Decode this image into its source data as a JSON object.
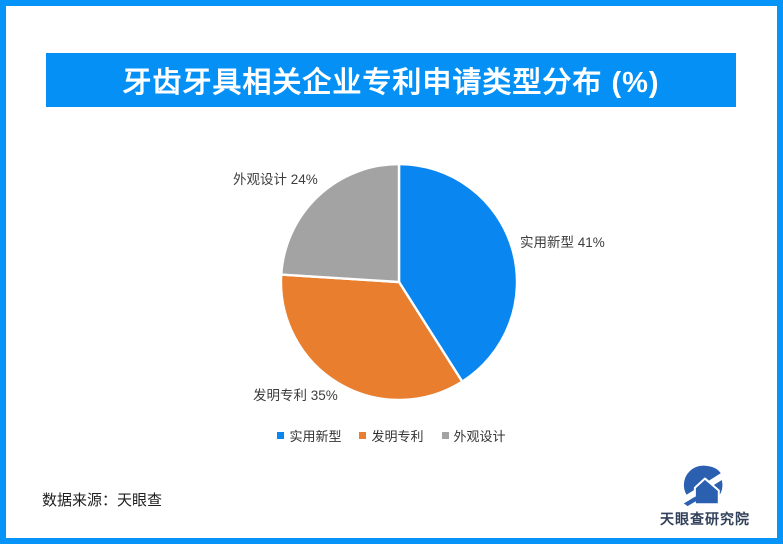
{
  "theme": {
    "border_color": "#0794F8",
    "banner_bg": "#0590F6",
    "banner_text_color": "#FFFFFF"
  },
  "header": {
    "title": "牙齿牙具相关企业专利申请类型分布 (%)"
  },
  "chart_data": {
    "type": "pie",
    "title": "牙齿牙具相关企业专利申请类型分布 (%)",
    "start_angle": "top",
    "direction": "clockwise",
    "legend_position": "bottom",
    "labels_outside": true,
    "series": [
      {
        "name": "实用新型",
        "value": 41,
        "color": "#0A86F0",
        "label": "实用新型 41%"
      },
      {
        "name": "发明专利",
        "value": 35,
        "color": "#E87E2E",
        "label": "发明专利 35%"
      },
      {
        "name": "外观设计",
        "value": 24,
        "color": "#A3A3A3",
        "label": "外观设计 24%"
      }
    ]
  },
  "footer": {
    "source": "数据来源：天眼查",
    "logo_text": "天眼查研究院",
    "logo_color": "#2A5FB4"
  }
}
